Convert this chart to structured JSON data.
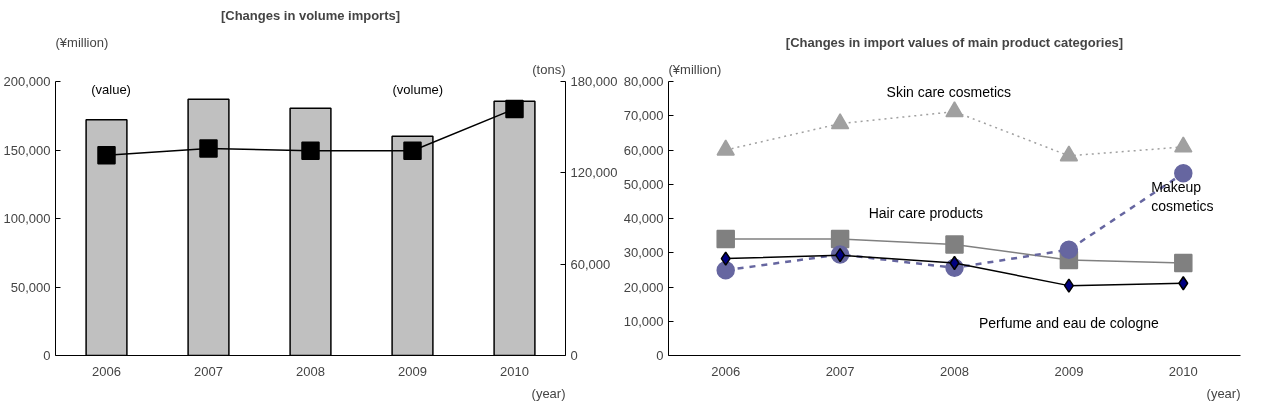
{
  "chart_data": [
    {
      "type": "bar",
      "title": "[Changes in volume imports]",
      "ylabel": "(¥million)",
      "y2label": "(tons)",
      "xlabel": "(year)",
      "categories": [
        "2006",
        "2007",
        "2008",
        "2009",
        "2010"
      ],
      "series": [
        {
          "name": "(value)",
          "type": "bar",
          "color": "#c0c0c0",
          "values": [
            172000,
            187000,
            180500,
            160000,
            185500
          ]
        },
        {
          "name": "(volume)",
          "type": "line",
          "axis": "y2",
          "color": "#000000",
          "marker": "square",
          "line_style": "solid",
          "values": [
            131500,
            136000,
            134500,
            134500,
            162000
          ]
        }
      ],
      "ylim": [
        0,
        200000
      ],
      "yticks": [
        {
          "value": 0,
          "label": "0"
        },
        {
          "value": 50000,
          "label": "50,000"
        },
        {
          "value": 100000,
          "label": "100,000"
        },
        {
          "value": 150000,
          "label": "150,000"
        },
        {
          "value": 200000,
          "label": "200,000"
        }
      ],
      "y2lim": [
        0,
        180000
      ],
      "y2ticks": [
        {
          "value": 0,
          "label": "0"
        },
        {
          "value": 60000,
          "label": "60,000"
        },
        {
          "value": 120000,
          "label": "120,000"
        },
        {
          "value": 180000,
          "label": "180,000"
        }
      ],
      "grid": false
    },
    {
      "type": "line",
      "title": "[Changes in import values of main product categories]",
      "ylabel": "(¥million)",
      "xlabel": "(year)",
      "categories": [
        "2006",
        "2007",
        "2008",
        "2009",
        "2010"
      ],
      "series": [
        {
          "name": "Skin care cosmetics",
          "color": "#a0a0a0",
          "marker": "triangle",
          "line_style": "dotted",
          "values": [
            60000,
            67700,
            71200,
            58300,
            60900
          ]
        },
        {
          "name": "Hair care products",
          "color": "#808080",
          "marker": "square",
          "line_style": "solid",
          "values": [
            34000,
            34000,
            32400,
            27900,
            27000
          ]
        },
        {
          "name": "Makeup cosmetics",
          "color": "#6666a0",
          "marker": "circle",
          "line_style": "dashed",
          "values": [
            24900,
            29500,
            25600,
            30900,
            53200
          ]
        },
        {
          "name": "Perfume and eau de cologne",
          "color": "#000080",
          "marker": "diamond",
          "line_style": "solid",
          "values": [
            28300,
            29300,
            27000,
            20400,
            21100
          ]
        }
      ],
      "ylim": [
        0,
        80000
      ],
      "yticks": [
        {
          "value": 0,
          "label": "0"
        },
        {
          "value": 10000,
          "label": "10,000"
        },
        {
          "value": 20000,
          "label": "20,000"
        },
        {
          "value": 30000,
          "label": "30,000"
        },
        {
          "value": 40000,
          "label": "40,000"
        },
        {
          "value": 50000,
          "label": "50,000"
        },
        {
          "value": 60000,
          "label": "60,000"
        },
        {
          "value": 70000,
          "label": "70,000"
        },
        {
          "value": 80000,
          "label": "80,000"
        }
      ],
      "grid": false
    }
  ]
}
